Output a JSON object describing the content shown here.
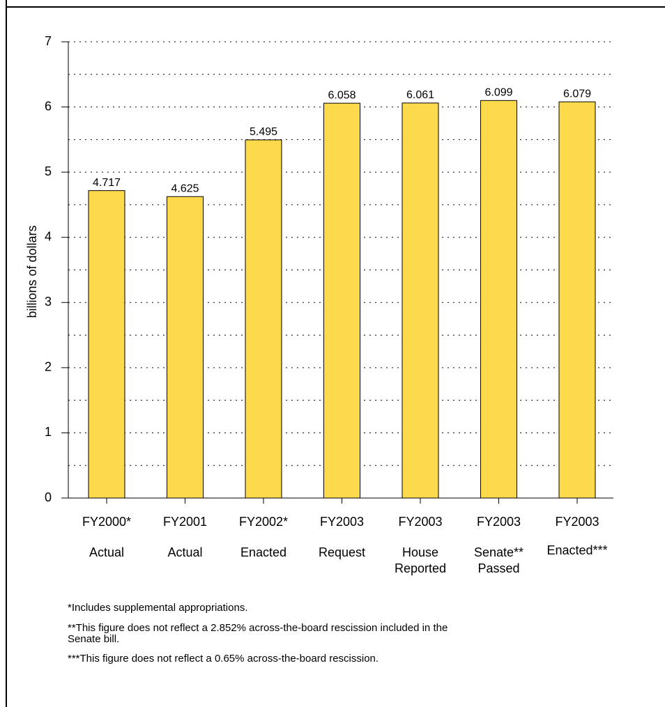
{
  "chart_data": {
    "type": "bar",
    "y_label": "billions of dollars",
    "categories": [
      [
        "FY2000*",
        "Actual"
      ],
      [
        "FY2001",
        "Actual"
      ],
      [
        "FY2002*",
        "Enacted"
      ],
      [
        "FY2003",
        "Request"
      ],
      [
        "FY2003",
        "House",
        "Reported"
      ],
      [
        "FY2003",
        "Senate**",
        "Passed"
      ],
      [
        "FY2003",
        "Enacted***"
      ]
    ],
    "values": [
      4.717,
      4.625,
      5.495,
      6.058,
      6.061,
      6.099,
      6.079
    ],
    "color": "#fdd94c",
    "ylim": [
      0,
      7
    ],
    "yticks": [
      0,
      1,
      2,
      3,
      4,
      5,
      6,
      7
    ],
    "gridlines": [
      0.5,
      1,
      1.5,
      2,
      2.5,
      3,
      3.5,
      4,
      4.5,
      5,
      5.5,
      6,
      6.5,
      7
    ],
    "grid": true,
    "notes": [
      [
        "*Includes supplemental appropriations."
      ],
      [
        "**This figure does not reflect a 2.852% across-the-board rescission included in the",
        "Senate bill."
      ],
      [
        "***This figure does not reflect a 0.65% across-the-board rescission."
      ]
    ]
  }
}
